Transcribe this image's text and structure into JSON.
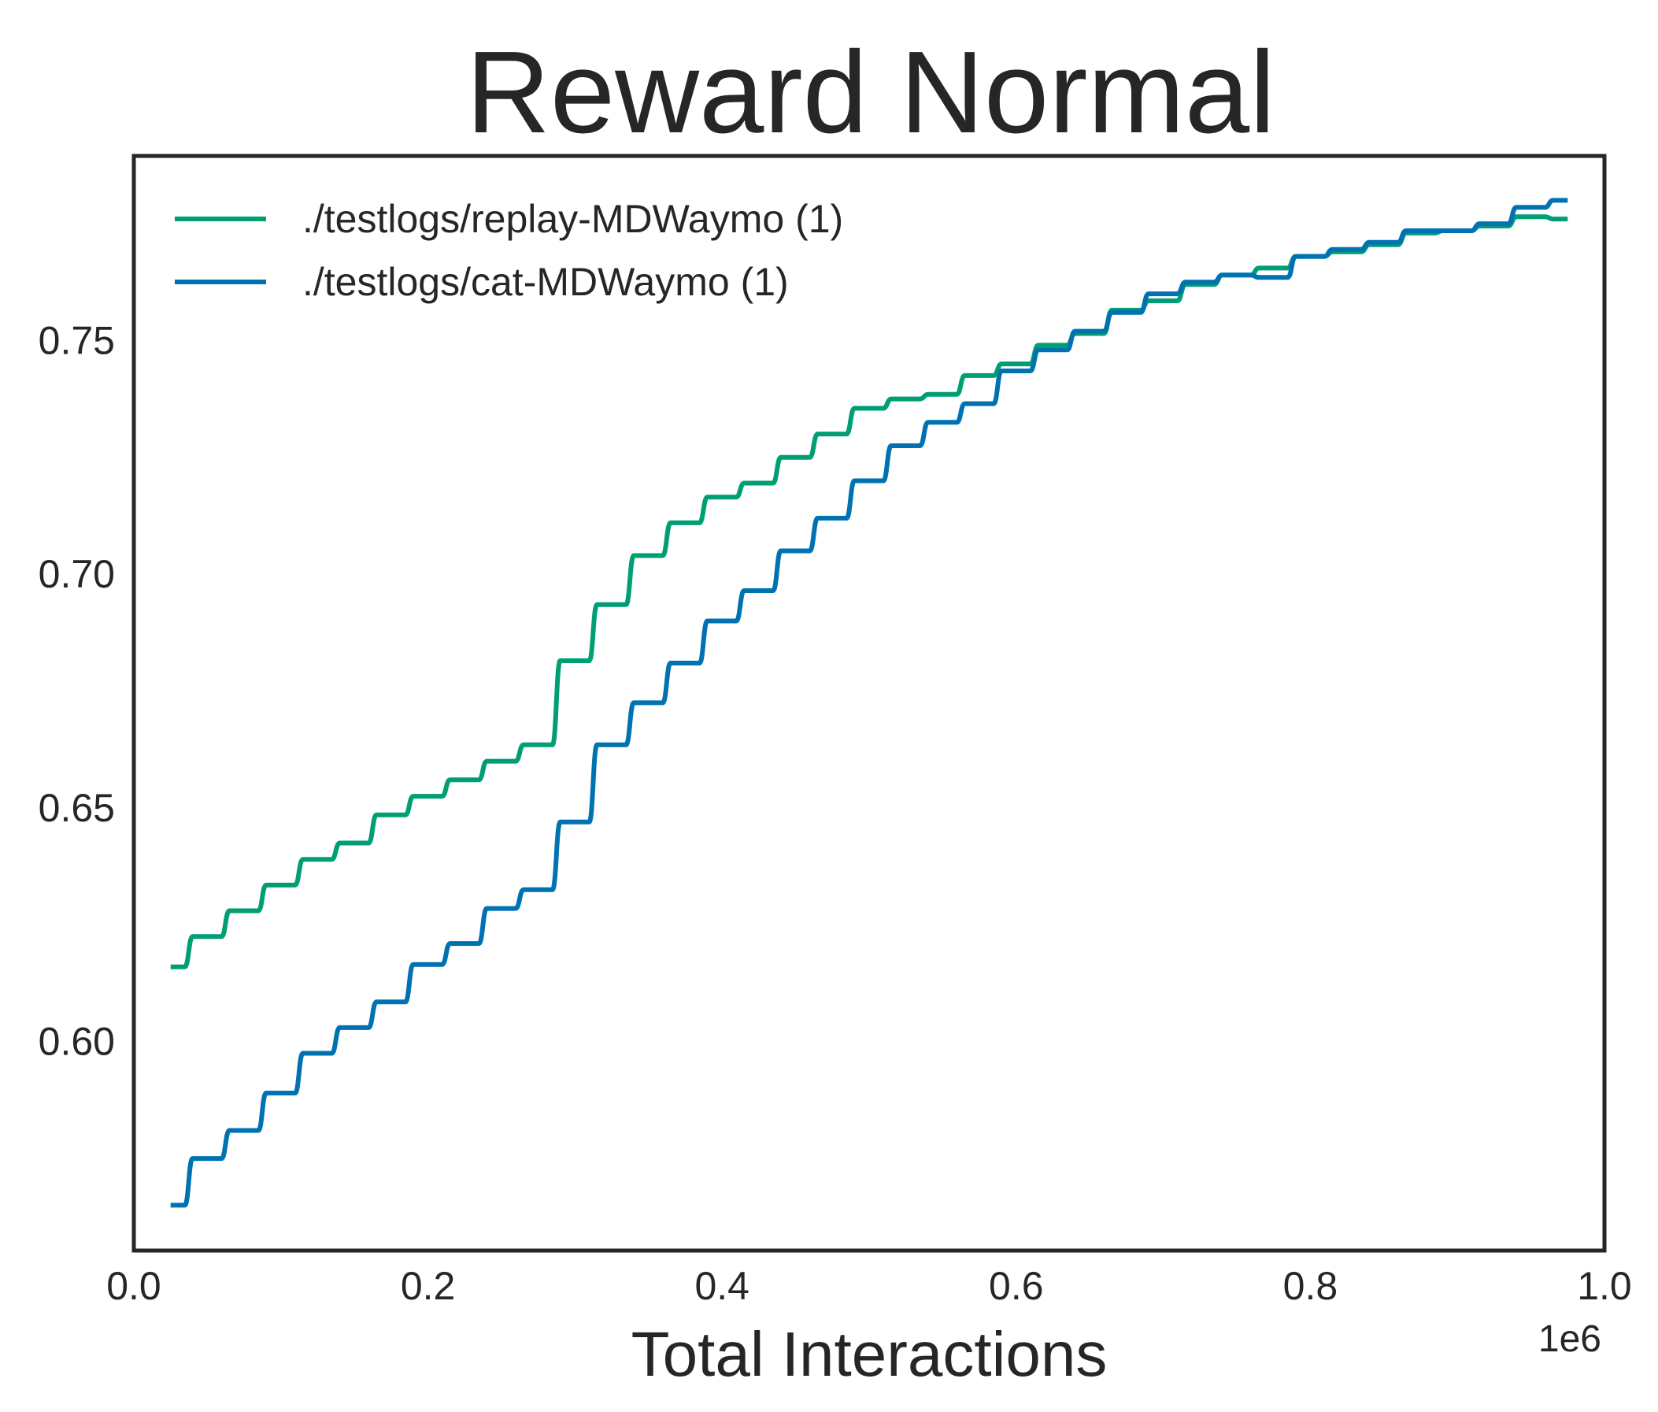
{
  "chart_data": {
    "type": "line",
    "title": "Reward Normal",
    "xlabel": "Total Interactions",
    "ylabel": "",
    "x_offset_label": "1e6",
    "xlim": [
      0.0,
      1.0
    ],
    "ylim": [
      0.5553,
      0.7895
    ],
    "x_scale_factor": 1000000,
    "x_ticks": [
      0.0,
      0.2,
      0.4,
      0.6,
      0.8,
      1.0
    ],
    "x_tick_labels": [
      "0.0",
      "0.2",
      "0.4",
      "0.6",
      "0.8",
      "1.0"
    ],
    "y_ticks": [
      0.6,
      0.65,
      0.7,
      0.75
    ],
    "y_tick_labels": [
      "0.60",
      "0.65",
      "0.70",
      "0.75"
    ],
    "grid": false,
    "legend_position": "top-left",
    "x": [
      0.025,
      0.04,
      0.065,
      0.09,
      0.115,
      0.14,
      0.165,
      0.19,
      0.215,
      0.24,
      0.265,
      0.29,
      0.315,
      0.34,
      0.365,
      0.39,
      0.415,
      0.44,
      0.465,
      0.49,
      0.515,
      0.54,
      0.565,
      0.59,
      0.615,
      0.64,
      0.665,
      0.69,
      0.715,
      0.74,
      0.765,
      0.79,
      0.815,
      0.84,
      0.865,
      0.89,
      0.915,
      0.94,
      0.965,
      0.975
    ],
    "series": [
      {
        "name": "./testlogs/replay-MDWaymo (1)",
        "color": "#009E73",
        "values": [
          0.616,
          0.6225,
          0.628,
          0.6335,
          0.639,
          0.6425,
          0.6485,
          0.6525,
          0.656,
          0.66,
          0.6635,
          0.6815,
          0.6935,
          0.704,
          0.711,
          0.7165,
          0.7195,
          0.725,
          0.73,
          0.7355,
          0.7375,
          0.7385,
          0.7425,
          0.745,
          0.749,
          0.7515,
          0.7565,
          0.7585,
          0.762,
          0.764,
          0.7655,
          0.768,
          0.769,
          0.7705,
          0.773,
          0.7735,
          0.7745,
          0.7765,
          0.776,
          0.776
        ]
      },
      {
        "name": "./testlogs/cat-MDWaymo (1)",
        "color": "#0072B2",
        "values": [
          0.565,
          0.575,
          0.581,
          0.589,
          0.5975,
          0.603,
          0.6085,
          0.6165,
          0.621,
          0.6285,
          0.6325,
          0.647,
          0.6635,
          0.6725,
          0.681,
          0.69,
          0.6965,
          0.705,
          0.712,
          0.72,
          0.7275,
          0.7325,
          0.7365,
          0.7435,
          0.748,
          0.752,
          0.756,
          0.76,
          0.7625,
          0.764,
          0.7635,
          0.768,
          0.7695,
          0.771,
          0.7735,
          0.7735,
          0.775,
          0.7785,
          0.78,
          0.78
        ]
      }
    ]
  }
}
